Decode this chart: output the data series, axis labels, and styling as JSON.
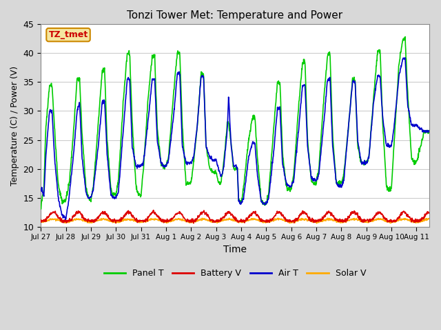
{
  "title": "Tonzi Tower Met: Temperature and Power",
  "xlabel": "Time",
  "ylabel": "Temperature (C) / Power (V)",
  "ylim": [
    10,
    45
  ],
  "xlim": [
    0,
    15.5
  ],
  "outer_bg": "#d8d8d8",
  "plot_bg": "#ffffff",
  "grid_color": "#e0e0e0",
  "label_box_text": "TZ_tmet",
  "label_box_bg": "#f5e6a0",
  "label_box_edge": "#cc8800",
  "legend_entries": [
    "Panel T",
    "Battery V",
    "Air T",
    "Solar V"
  ],
  "legend_colors": [
    "#00cc00",
    "#dd0000",
    "#0000cc",
    "#ffaa00"
  ],
  "xtick_labels": [
    "Jul 27",
    "Jul 28",
    "Jul 29",
    "Jul 30",
    "Jul 31",
    "Aug 1",
    "Aug 2",
    "Aug 3",
    "Aug 4",
    "Aug 5",
    "Aug 6",
    "Aug 7",
    "Aug 8",
    "Aug 9",
    "Aug 10",
    "Aug 11"
  ],
  "xtick_positions": [
    0,
    1,
    2,
    3,
    4,
    5,
    6,
    7,
    8,
    9,
    10,
    11,
    12,
    13,
    14,
    15
  ],
  "panel_T_data": [
    [
      0.0,
      13.0
    ],
    [
      0.05,
      15.0
    ],
    [
      0.12,
      16.0
    ],
    [
      0.2,
      27.0
    ],
    [
      0.35,
      34.5
    ],
    [
      0.45,
      34.5
    ],
    [
      0.55,
      27.0
    ],
    [
      0.7,
      17.0
    ],
    [
      0.85,
      14.5
    ],
    [
      1.0,
      14.5
    ],
    [
      1.15,
      18.0
    ],
    [
      1.3,
      26.0
    ],
    [
      1.45,
      35.5
    ],
    [
      1.55,
      35.5
    ],
    [
      1.65,
      26.0
    ],
    [
      1.8,
      17.0
    ],
    [
      1.9,
      15.0
    ],
    [
      2.0,
      14.5
    ],
    [
      2.1,
      17.0
    ],
    [
      2.3,
      28.0
    ],
    [
      2.45,
      37.0
    ],
    [
      2.55,
      37.0
    ],
    [
      2.65,
      25.0
    ],
    [
      2.8,
      16.5
    ],
    [
      2.9,
      15.5
    ],
    [
      3.0,
      15.5
    ],
    [
      3.1,
      18.0
    ],
    [
      3.3,
      32.0
    ],
    [
      3.45,
      40.0
    ],
    [
      3.55,
      40.0
    ],
    [
      3.65,
      28.0
    ],
    [
      3.8,
      17.0
    ],
    [
      3.9,
      15.5
    ],
    [
      4.0,
      15.5
    ],
    [
      4.1,
      20.0
    ],
    [
      4.3,
      33.0
    ],
    [
      4.45,
      39.5
    ],
    [
      4.55,
      39.5
    ],
    [
      4.65,
      27.0
    ],
    [
      4.8,
      21.0
    ],
    [
      4.9,
      20.5
    ],
    [
      5.0,
      20.5
    ],
    [
      5.1,
      22.0
    ],
    [
      5.3,
      33.0
    ],
    [
      5.45,
      40.0
    ],
    [
      5.55,
      40.0
    ],
    [
      5.65,
      27.5
    ],
    [
      5.8,
      17.5
    ],
    [
      5.9,
      17.5
    ],
    [
      6.0,
      17.5
    ],
    [
      6.1,
      21.0
    ],
    [
      6.25,
      27.5
    ],
    [
      6.4,
      36.5
    ],
    [
      6.5,
      36.5
    ],
    [
      6.6,
      24.0
    ],
    [
      6.75,
      20.0
    ],
    [
      6.85,
      19.5
    ],
    [
      7.0,
      19.5
    ],
    [
      7.1,
      17.5
    ],
    [
      7.2,
      17.5
    ],
    [
      7.3,
      21.0
    ],
    [
      7.45,
      28.0
    ],
    [
      7.5,
      28.0
    ],
    [
      7.6,
      24.5
    ],
    [
      7.7,
      20.0
    ],
    [
      7.8,
      20.0
    ],
    [
      7.85,
      20.0
    ],
    [
      7.9,
      14.5
    ],
    [
      8.0,
      14.0
    ],
    [
      8.1,
      17.0
    ],
    [
      8.3,
      25.0
    ],
    [
      8.45,
      29.0
    ],
    [
      8.55,
      29.0
    ],
    [
      8.65,
      22.0
    ],
    [
      8.8,
      14.5
    ],
    [
      8.9,
      14.0
    ],
    [
      9.0,
      14.0
    ],
    [
      9.1,
      16.0
    ],
    [
      9.3,
      27.0
    ],
    [
      9.45,
      35.0
    ],
    [
      9.55,
      35.0
    ],
    [
      9.65,
      23.0
    ],
    [
      9.8,
      17.0
    ],
    [
      9.9,
      16.5
    ],
    [
      10.0,
      16.5
    ],
    [
      10.1,
      19.0
    ],
    [
      10.3,
      31.0
    ],
    [
      10.45,
      38.5
    ],
    [
      10.55,
      38.5
    ],
    [
      10.65,
      25.0
    ],
    [
      10.8,
      18.0
    ],
    [
      10.9,
      17.5
    ],
    [
      11.0,
      17.5
    ],
    [
      11.1,
      20.0
    ],
    [
      11.3,
      32.0
    ],
    [
      11.45,
      39.8
    ],
    [
      11.55,
      39.8
    ],
    [
      11.65,
      26.0
    ],
    [
      11.8,
      17.5
    ],
    [
      11.9,
      17.5
    ],
    [
      12.0,
      17.5
    ],
    [
      12.1,
      19.0
    ],
    [
      12.3,
      28.0
    ],
    [
      12.45,
      35.5
    ],
    [
      12.55,
      35.5
    ],
    [
      12.65,
      24.0
    ],
    [
      12.8,
      21.0
    ],
    [
      12.9,
      21.0
    ],
    [
      13.0,
      21.0
    ],
    [
      13.1,
      22.0
    ],
    [
      13.3,
      33.0
    ],
    [
      13.45,
      40.5
    ],
    [
      13.55,
      40.5
    ],
    [
      13.65,
      28.0
    ],
    [
      13.8,
      17.0
    ],
    [
      13.9,
      16.5
    ],
    [
      14.0,
      16.5
    ],
    [
      14.1,
      24.0
    ],
    [
      14.3,
      38.0
    ],
    [
      14.45,
      42.5
    ],
    [
      14.55,
      42.5
    ],
    [
      14.65,
      33.0
    ],
    [
      14.8,
      22.0
    ],
    [
      14.9,
      21.0
    ],
    [
      15.0,
      21.0
    ],
    [
      15.3,
      26.5
    ],
    [
      15.5,
      26.5
    ]
  ],
  "air_T_data": [
    [
      0.0,
      16.5
    ],
    [
      0.05,
      16.5
    ],
    [
      0.12,
      15.0
    ],
    [
      0.2,
      22.0
    ],
    [
      0.35,
      30.0
    ],
    [
      0.45,
      30.0
    ],
    [
      0.55,
      22.0
    ],
    [
      0.7,
      15.0
    ],
    [
      0.85,
      12.0
    ],
    [
      1.0,
      11.5
    ],
    [
      1.1,
      14.0
    ],
    [
      1.3,
      22.0
    ],
    [
      1.45,
      30.0
    ],
    [
      1.55,
      31.5
    ],
    [
      1.65,
      22.0
    ],
    [
      1.8,
      16.0
    ],
    [
      1.9,
      15.0
    ],
    [
      2.0,
      15.0
    ],
    [
      2.1,
      16.5
    ],
    [
      2.3,
      24.0
    ],
    [
      2.45,
      31.5
    ],
    [
      2.55,
      31.5
    ],
    [
      2.65,
      22.5
    ],
    [
      2.8,
      15.5
    ],
    [
      2.9,
      15.0
    ],
    [
      3.0,
      15.0
    ],
    [
      3.1,
      16.0
    ],
    [
      3.3,
      27.0
    ],
    [
      3.45,
      35.5
    ],
    [
      3.55,
      35.5
    ],
    [
      3.65,
      24.0
    ],
    [
      3.8,
      20.5
    ],
    [
      3.9,
      20.5
    ],
    [
      4.0,
      20.5
    ],
    [
      4.1,
      21.0
    ],
    [
      4.3,
      29.0
    ],
    [
      4.45,
      35.5
    ],
    [
      4.55,
      35.5
    ],
    [
      4.65,
      25.0
    ],
    [
      4.8,
      21.0
    ],
    [
      4.9,
      20.5
    ],
    [
      5.0,
      20.5
    ],
    [
      5.1,
      21.5
    ],
    [
      5.3,
      29.0
    ],
    [
      5.45,
      36.5
    ],
    [
      5.55,
      36.5
    ],
    [
      5.65,
      24.0
    ],
    [
      5.8,
      21.0
    ],
    [
      5.9,
      21.0
    ],
    [
      6.0,
      21.0
    ],
    [
      6.1,
      22.0
    ],
    [
      6.25,
      27.5
    ],
    [
      6.4,
      36.0
    ],
    [
      6.5,
      36.0
    ],
    [
      6.6,
      24.0
    ],
    [
      6.75,
      22.0
    ],
    [
      6.85,
      21.5
    ],
    [
      7.0,
      21.5
    ],
    [
      7.1,
      20.0
    ],
    [
      7.2,
      18.5
    ],
    [
      7.3,
      20.0
    ],
    [
      7.45,
      27.0
    ],
    [
      7.5,
      32.5
    ],
    [
      7.6,
      24.0
    ],
    [
      7.7,
      20.5
    ],
    [
      7.8,
      20.5
    ],
    [
      7.85,
      20.0
    ],
    [
      7.9,
      14.5
    ],
    [
      8.0,
      14.0
    ],
    [
      8.1,
      15.0
    ],
    [
      8.3,
      22.0
    ],
    [
      8.45,
      24.5
    ],
    [
      8.55,
      24.5
    ],
    [
      8.65,
      19.0
    ],
    [
      8.8,
      14.5
    ],
    [
      8.9,
      14.0
    ],
    [
      9.0,
      14.0
    ],
    [
      9.1,
      15.0
    ],
    [
      9.3,
      23.0
    ],
    [
      9.45,
      30.5
    ],
    [
      9.55,
      30.5
    ],
    [
      9.65,
      21.0
    ],
    [
      9.8,
      17.5
    ],
    [
      9.9,
      17.0
    ],
    [
      10.0,
      17.0
    ],
    [
      10.1,
      18.0
    ],
    [
      10.3,
      27.0
    ],
    [
      10.45,
      34.5
    ],
    [
      10.55,
      34.5
    ],
    [
      10.65,
      24.0
    ],
    [
      10.8,
      18.5
    ],
    [
      10.9,
      18.0
    ],
    [
      11.0,
      18.0
    ],
    [
      11.1,
      19.0
    ],
    [
      11.3,
      28.0
    ],
    [
      11.45,
      35.5
    ],
    [
      11.55,
      35.5
    ],
    [
      11.65,
      24.0
    ],
    [
      11.8,
      17.5
    ],
    [
      11.9,
      17.0
    ],
    [
      12.0,
      17.0
    ],
    [
      12.1,
      18.0
    ],
    [
      12.3,
      28.0
    ],
    [
      12.45,
      35.0
    ],
    [
      12.55,
      35.0
    ],
    [
      12.65,
      25.0
    ],
    [
      12.8,
      21.0
    ],
    [
      12.9,
      21.0
    ],
    [
      13.0,
      21.0
    ],
    [
      13.1,
      22.0
    ],
    [
      13.3,
      32.0
    ],
    [
      13.45,
      36.0
    ],
    [
      13.55,
      36.0
    ],
    [
      13.65,
      29.0
    ],
    [
      13.8,
      24.0
    ],
    [
      13.9,
      24.0
    ],
    [
      14.0,
      24.0
    ],
    [
      14.1,
      27.0
    ],
    [
      14.3,
      36.0
    ],
    [
      14.45,
      39.0
    ],
    [
      14.55,
      39.0
    ],
    [
      14.65,
      31.0
    ],
    [
      14.8,
      27.5
    ],
    [
      14.9,
      27.5
    ],
    [
      15.0,
      27.5
    ],
    [
      15.3,
      26.5
    ],
    [
      15.5,
      26.5
    ]
  ],
  "n_days": 15.5
}
